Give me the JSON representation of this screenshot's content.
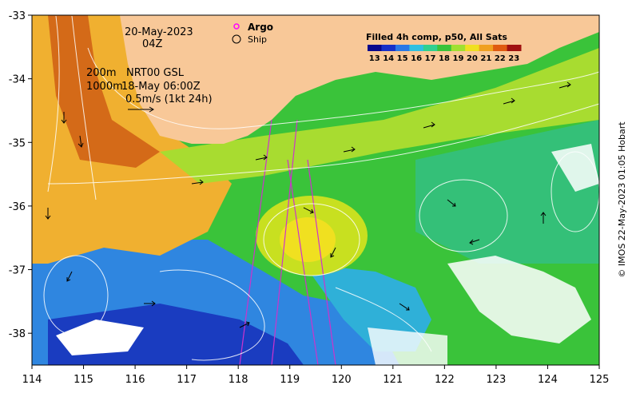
{
  "map": {
    "date": "20-May-2023",
    "time": "04Z",
    "depth_label": "200m",
    "depth_label2": "1000m",
    "product": "NRT00 GSL",
    "product_time": "18-May 06:00Z",
    "vector_scale": "0.5m/s (1kt 24h)",
    "colorbar_title": "Filled 4h comp, p50, All Sats",
    "colorbar_ticks": [
      "13",
      "14",
      "15",
      "16",
      "17",
      "18",
      "19",
      "20",
      "21",
      "22",
      "23"
    ],
    "colorbar_colors": [
      "#08088c",
      "#1630c8",
      "#2a78e6",
      "#30c0e0",
      "#30d090",
      "#3ac33a",
      "#a0e030",
      "#f0e020",
      "#f0a020",
      "#e05a10",
      "#a01010"
    ],
    "legend": {
      "argo_label": "Argo",
      "ship_label": "Ship",
      "argo_color": "#ff00ff"
    },
    "x_ticks": [
      "114",
      "115",
      "116",
      "117",
      "118",
      "119",
      "120",
      "121",
      "122",
      "123",
      "124",
      "125"
    ],
    "y_ticks": [
      "-33",
      "-34",
      "-35",
      "-36",
      "-37",
      "-38"
    ],
    "x_range": [
      114,
      125
    ],
    "y_range": [
      -38.5,
      -33
    ],
    "credit": "© IMOS 22-May-2023 01:05 Hobart",
    "land_color": "#f8c898"
  }
}
